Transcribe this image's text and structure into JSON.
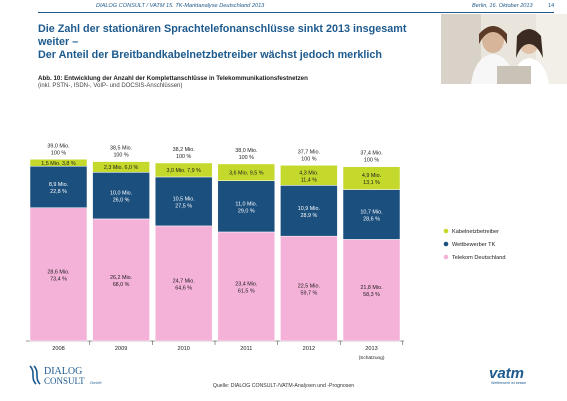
{
  "header": {
    "left": "DIALOG CONSULT / VATM 15. TK-Marktanalyse Deutschland 2013",
    "right": "Berlin, 16. Oktober 2013",
    "page": "14"
  },
  "title_lines": [
    "Die Zahl der stationären Sprachtelefonanschlüsse sinkt 2013 insgesamt weiter –",
    "Der Anteil der Breitbandkabelnetzbetreiber wächst jedoch merklich"
  ],
  "caption": "Abb. 10: Entwicklung der Anzahl der Komplettanschlüsse in Telekommunikationsfestnetzen",
  "subcaption": "(inkl. PSTN-, ISDN-, VoIP- und DOCSIS-Anschlüssen)",
  "footer": {
    "source": "Quelle: DIALOG CONSULT-/VATM-Analysen und -Prognosen",
    "logo_left_line1": "DIALOG",
    "logo_left_line2": "CONSULT",
    "logo_left_sup": "GmbH",
    "logo_right": "vatm",
    "logo_right_tagline": "Wettbewerb ist besser"
  },
  "colors": {
    "kabel": "#c5d92d",
    "wettbewerber": "#1b4f7d",
    "telekom": "#f4b2d9",
    "title": "#1d5a8e"
  },
  "chart_data": {
    "type": "bar",
    "stacked": true,
    "categories": [
      "2008",
      "2009",
      "2010",
      "2011",
      "2012",
      "2013"
    ],
    "category_note": {
      "category": "2013",
      "text": "(Schätzung)"
    },
    "totals": [
      {
        "value": "39,0 Mio.",
        "pct": "100 %"
      },
      {
        "value": "38,5 Mio.",
        "pct": "100 %"
      },
      {
        "value": "38,2 Mio.",
        "pct": "100 %"
      },
      {
        "value": "38,0 Mio.",
        "pct": "100 %"
      },
      {
        "value": "37,7 Mio.",
        "pct": "100 %"
      },
      {
        "value": "37,4 Mio.",
        "pct": "100 %"
      }
    ],
    "series": [
      {
        "name": "Telekom Deutschland",
        "color": "#f4b2d9",
        "values": [
          28.6,
          26.2,
          24.7,
          23.4,
          22.5,
          21.8
        ],
        "labels": [
          [
            "28,6 Mio.",
            "73,4 %"
          ],
          [
            "26,2 Mio.",
            "68,0 %"
          ],
          [
            "24,7 Mio.",
            "64,6 %"
          ],
          [
            "23,4 Mio.",
            "61,5 %"
          ],
          [
            "22,5 Mio.",
            "59,7 %"
          ],
          [
            "21,8 Mio.",
            "58,3 %"
          ]
        ]
      },
      {
        "name": "Wettbewerber TK",
        "color": "#1b4f7d",
        "values": [
          8.9,
          10.0,
          10.5,
          11.0,
          10.9,
          10.7
        ],
        "labels": [
          [
            "8,9 Mio.",
            "22,8 %"
          ],
          [
            "10,0 Mio.",
            "26,0 %"
          ],
          [
            "10,5 Mio.",
            "27,5 %"
          ],
          [
            "11,0 Mio.",
            "29,0 %"
          ],
          [
            "10,9 Mio.",
            "28,9 %"
          ],
          [
            "10,7 Mio.",
            "28,6 %"
          ]
        ]
      },
      {
        "name": "Kabelnetzbetreiber",
        "color": "#c5d92d",
        "values": [
          1.5,
          2.3,
          3.0,
          3.6,
          4.3,
          4.9
        ],
        "labels": [
          [
            "1,5 Mio. 3,8 %"
          ],
          [
            "2,3 Mio. 6,0 %"
          ],
          [
            "3,0 Mio. 7,9 %"
          ],
          [
            "3,6 Mio. 9,5 %"
          ],
          [
            "4,3 Mio.",
            "11,4 %"
          ],
          [
            "4,9 Mio.",
            "13,1 %"
          ]
        ]
      }
    ],
    "legend": [
      "Kabelnetzbetreiber",
      "Wettbewerber TK",
      "Telekom Deutschland"
    ],
    "legend_position": "right"
  }
}
